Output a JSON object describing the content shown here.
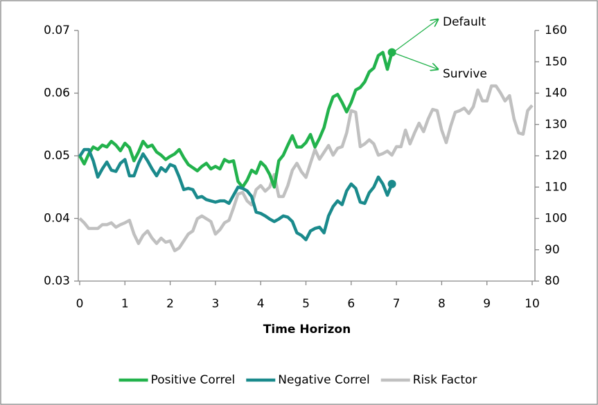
{
  "chart_data": {
    "type": "line",
    "xlabel": "Time Horizon",
    "annotations": [
      "Default",
      "Survive"
    ],
    "x": [
      0,
      0.1,
      0.2,
      0.3,
      0.4,
      0.5,
      0.6,
      0.7,
      0.8,
      0.9,
      1,
      1.1,
      1.2,
      1.3,
      1.4,
      1.5,
      1.6,
      1.7,
      1.8,
      1.9,
      2,
      2.1,
      2.2,
      2.3,
      2.4,
      2.5,
      2.6,
      2.7,
      2.8,
      2.9,
      3,
      3.1,
      3.2,
      3.3,
      3.4,
      3.5,
      3.6,
      3.7,
      3.8,
      3.9,
      4,
      4.1,
      4.2,
      4.3,
      4.4,
      4.5,
      4.6,
      4.7,
      4.8,
      4.9,
      5,
      5.1,
      5.2,
      5.3,
      5.4,
      5.5,
      5.6,
      5.7,
      5.8,
      5.9,
      6,
      6.1,
      6.2,
      6.3,
      6.4,
      6.5,
      6.6,
      6.7,
      6.8,
      6.9,
      7,
      7.1,
      7.2,
      7.3,
      7.4,
      7.5,
      7.6,
      7.7,
      7.8,
      7.9,
      8,
      8.1,
      8.2,
      8.3,
      8.4,
      8.5,
      8.6,
      8.7,
      8.8,
      8.9,
      9,
      9.1,
      9.2,
      9.3,
      9.4,
      9.5,
      9.6,
      9.7,
      9.8,
      9.9,
      10
    ],
    "series": [
      {
        "name": "Positive Correl",
        "color": "#22b24c",
        "axis": "y",
        "end_marker": true,
        "values": [
          0.05,
          0.0487,
          0.0503,
          0.0514,
          0.051,
          0.0517,
          0.0514,
          0.0523,
          0.0517,
          0.0508,
          0.052,
          0.0513,
          0.0492,
          0.0506,
          0.0523,
          0.0514,
          0.0517,
          0.0506,
          0.0501,
          0.0494,
          0.0499,
          0.0503,
          0.051,
          0.0497,
          0.0486,
          0.0481,
          0.0476,
          0.0483,
          0.0488,
          0.0479,
          0.0483,
          0.0479,
          0.0494,
          0.049,
          0.0492,
          0.0459,
          0.045,
          0.0461,
          0.0477,
          0.0472,
          0.049,
          0.0483,
          0.047,
          0.045,
          0.0492,
          0.0501,
          0.0517,
          0.0532,
          0.0514,
          0.0514,
          0.0521,
          0.0534,
          0.0514,
          0.0528,
          0.0545,
          0.0574,
          0.0594,
          0.0598,
          0.0585,
          0.057,
          0.0585,
          0.0605,
          0.0609,
          0.0618,
          0.0634,
          0.064,
          0.066,
          0.0665,
          0.0638,
          0.0665,
          null,
          null,
          null,
          null,
          null,
          null,
          null,
          null,
          null,
          null,
          null,
          null,
          null,
          null,
          null,
          null,
          null,
          null,
          null,
          null,
          null,
          null,
          null,
          null,
          null,
          null,
          null,
          null,
          null,
          null,
          null
        ]
      },
      {
        "name": "Negative Correl",
        "color": "#1a8a8c",
        "axis": "y",
        "end_marker": true,
        "values": [
          0.0499,
          0.051,
          0.051,
          0.0492,
          0.0466,
          0.0479,
          0.049,
          0.0477,
          0.0475,
          0.0488,
          0.0494,
          0.0468,
          0.0468,
          0.0488,
          0.0503,
          0.0492,
          0.0479,
          0.0468,
          0.0481,
          0.0475,
          0.0486,
          0.0483,
          0.0466,
          0.0446,
          0.0448,
          0.0446,
          0.0433,
          0.0435,
          0.043,
          0.0428,
          0.0426,
          0.0428,
          0.0428,
          0.0424,
          0.0437,
          0.045,
          0.0448,
          0.0444,
          0.0435,
          0.041,
          0.0408,
          0.0404,
          0.0399,
          0.0395,
          0.0399,
          0.0404,
          0.0402,
          0.0395,
          0.0377,
          0.0373,
          0.0366,
          0.038,
          0.0384,
          0.0386,
          0.0377,
          0.0404,
          0.0419,
          0.0428,
          0.0422,
          0.0444,
          0.0455,
          0.0448,
          0.0426,
          0.0424,
          0.0441,
          0.045,
          0.0466,
          0.0455,
          0.0437,
          0.0455,
          null,
          null,
          null,
          null,
          null,
          null,
          null,
          null,
          null,
          null,
          null,
          null,
          null,
          null,
          null,
          null,
          null,
          null,
          null,
          null,
          null,
          null,
          null,
          null,
          null,
          null,
          null,
          null,
          null,
          null,
          null
        ]
      },
      {
        "name": "Risk Factor",
        "color": "#c0c0c0",
        "axis": "y2",
        "end_marker": false,
        "values": [
          100,
          98.6,
          96.8,
          96.8,
          96.8,
          98,
          98,
          98.6,
          97.2,
          98,
          98.6,
          99.4,
          95,
          92,
          94.6,
          96,
          93.7,
          92,
          93.7,
          92.4,
          92.8,
          89.7,
          90.6,
          92.8,
          95,
          96,
          99.9,
          100.8,
          99.9,
          99,
          95,
          96.4,
          98.6,
          99.4,
          103.4,
          107.8,
          108.3,
          105.6,
          104.3,
          109.2,
          110.5,
          108.7,
          110,
          114,
          107,
          107,
          110.5,
          115.4,
          117.6,
          114.9,
          113.1,
          117.6,
          122,
          118.9,
          121.1,
          123.3,
          120.2,
          122.4,
          122.9,
          127.3,
          134.4,
          133.9,
          122.9,
          123.8,
          125.1,
          123.8,
          120.2,
          120.7,
          121.5,
          120.2,
          122.9,
          122.9,
          128.2,
          123.8,
          127.3,
          130.4,
          127.7,
          131.7,
          134.8,
          134.4,
          128.2,
          124.2,
          129.5,
          133.9,
          134.4,
          135.2,
          133.5,
          135.7,
          141,
          137.5,
          137.5,
          142.3,
          142.3,
          140.1,
          137.5,
          139.2,
          131.7,
          127.3,
          126.9,
          134.4,
          136.1
        ]
      }
    ],
    "xlim": [
      0,
      10
    ],
    "xticks": [
      0,
      1,
      2,
      3,
      4,
      5,
      6,
      7,
      8,
      9,
      10
    ],
    "ylim": [
      0.03,
      0.07
    ],
    "yticks": [
      0.03,
      0.04,
      0.05,
      0.06,
      0.07
    ],
    "y2lim": [
      80,
      160
    ],
    "y2ticks": [
      80,
      90,
      100,
      110,
      120,
      130,
      140,
      150,
      160
    ],
    "grid": false,
    "legend": "bottom"
  }
}
